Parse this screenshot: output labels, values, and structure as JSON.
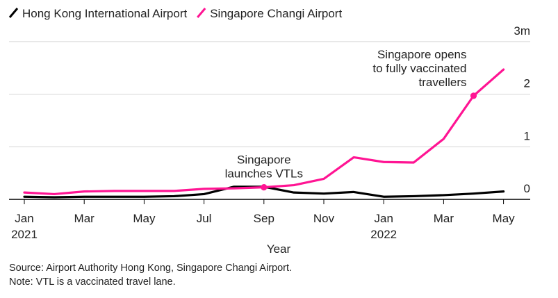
{
  "chart_data": {
    "type": "line",
    "xlabel": "Year",
    "ylabel": "",
    "ylim": [
      0,
      3
    ],
    "y_ticks": [
      {
        "value": 0,
        "label": "0"
      },
      {
        "value": 1,
        "label": "1"
      },
      {
        "value": 2,
        "label": "2"
      },
      {
        "value": 3,
        "label": "3m"
      }
    ],
    "x_ticks": [
      {
        "month": "2021-01",
        "label": "Jan",
        "sublabel": "2021"
      },
      {
        "month": "2021-03",
        "label": "Mar",
        "sublabel": ""
      },
      {
        "month": "2021-05",
        "label": "May",
        "sublabel": ""
      },
      {
        "month": "2021-07",
        "label": "Jul",
        "sublabel": ""
      },
      {
        "month": "2021-09",
        "label": "Sep",
        "sublabel": ""
      },
      {
        "month": "2021-11",
        "label": "Nov",
        "sublabel": ""
      },
      {
        "month": "2022-01",
        "label": "Jan",
        "sublabel": "2022"
      },
      {
        "month": "2022-03",
        "label": "Mar",
        "sublabel": ""
      },
      {
        "month": "2022-05",
        "label": "May",
        "sublabel": ""
      }
    ],
    "x": [
      "2021-01",
      "2021-02",
      "2021-03",
      "2021-04",
      "2021-05",
      "2021-06",
      "2021-07",
      "2021-08",
      "2021-09",
      "2021-10",
      "2021-11",
      "2021-12",
      "2022-01",
      "2022-02",
      "2022-03",
      "2022-04",
      "2022-05"
    ],
    "series": [
      {
        "name": "Hong Kong International Airport",
        "color": "#000000",
        "values": [
          0.05,
          0.04,
          0.05,
          0.05,
          0.05,
          0.06,
          0.1,
          0.24,
          0.24,
          0.13,
          0.11,
          0.14,
          0.05,
          0.06,
          0.08,
          0.11,
          0.15
        ]
      },
      {
        "name": "Singapore Changi Airport",
        "color": "#ff1493",
        "values": [
          0.13,
          0.1,
          0.15,
          0.16,
          0.16,
          0.16,
          0.2,
          0.21,
          0.23,
          0.27,
          0.39,
          0.8,
          0.71,
          0.7,
          1.15,
          1.97,
          2.47
        ]
      }
    ],
    "annotations": [
      {
        "series": 1,
        "x": "2021-09",
        "value": 0.23,
        "lines": [
          "Singapore",
          "launches VTLs"
        ]
      },
      {
        "series": 1,
        "x": "2022-04",
        "value": 1.97,
        "lines": [
          "Singapore opens",
          "to fully vaccinated",
          "travellers"
        ]
      }
    ],
    "grid": true,
    "legend_position": "top-left"
  },
  "footer": {
    "source": "Source: Airport Authority Hong Kong, Singapore Changi Airport.",
    "note": "Note: VTL is a vaccinated travel lane."
  }
}
